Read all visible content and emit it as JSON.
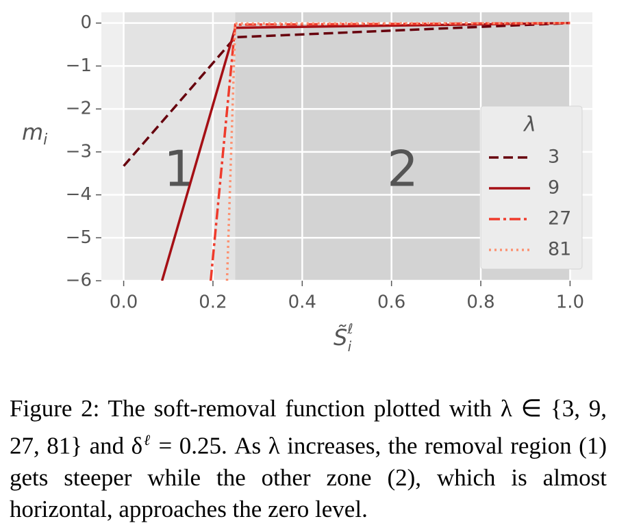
{
  "chart_data": {
    "type": "line",
    "ylabel": {
      "base": "m",
      "sub": "i"
    },
    "xlabel": {
      "base": "S̃",
      "sub": "i",
      "sup": "ℓ"
    },
    "xlim": [
      -0.05,
      1.05
    ],
    "ylim": [
      -6,
      0.25
    ],
    "xticks": [
      {
        "value": 0,
        "label": "0.0"
      },
      0.2,
      0.4,
      0.6,
      0.8,
      {
        "value": 1,
        "label": "1.0"
      }
    ],
    "yticks": [
      0,
      {
        "value": -1,
        "label": "−1"
      },
      {
        "value": -2,
        "label": "−2"
      },
      {
        "value": -3,
        "label": "−3"
      },
      {
        "value": -4,
        "label": "−4"
      },
      {
        "value": -5,
        "label": "−5"
      },
      {
        "value": -6,
        "label": "−6"
      }
    ],
    "grid": true,
    "regions": [
      {
        "label": "1",
        "xlim": [
          0,
          0.25
        ],
        "color": "#e3e3e3"
      },
      {
        "label": "2",
        "xlim": [
          0.25,
          1
        ],
        "color": "#d3d3d3"
      }
    ],
    "legend_title": "λ",
    "legend": "right",
    "series": [
      {
        "name": "3",
        "color": "#67000d",
        "linestyle": "dashed",
        "x": [
          0,
          0.25,
          1
        ],
        "values": [
          -3.33,
          -0.33,
          0
        ]
      },
      {
        "name": "9",
        "color": "#a50f15",
        "linestyle": "solid",
        "x": [
          0.086,
          0.25,
          1
        ],
        "values": [
          -6,
          -0.11,
          0
        ]
      },
      {
        "name": "27",
        "color": "#ef3b2c",
        "linestyle": "dashdot",
        "x": [
          0.195,
          0.25,
          1
        ],
        "values": [
          -6,
          -0.037,
          0
        ]
      },
      {
        "name": "81",
        "color": "#fc9272",
        "linestyle": "dotted",
        "x": [
          0.2315,
          0.25,
          1
        ],
        "values": [
          -6,
          -0.012,
          0
        ]
      }
    ]
  },
  "caption": [
    "Figure 2:  The soft-removal function plotted with λ ∈ {3, 9, 27, 81} and δ",
    "ℓ",
    " = 0.25.  As λ increases, the removal region (1) gets steeper while the other zone (2), which is almost horizontal, approaches the zero level."
  ]
}
